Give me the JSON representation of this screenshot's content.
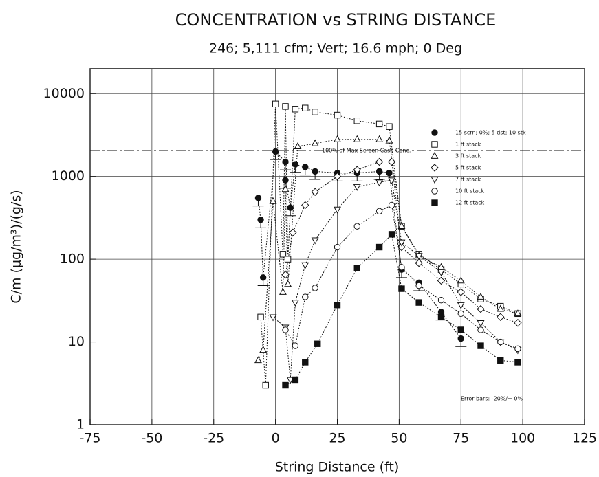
{
  "chart_data": {
    "type": "scatter",
    "title": "CONCENTRATION vs STRING DISTANCE",
    "subtitle": "246; 5,111 cfm; Vert; 16.6 mph; 0 Deg",
    "x_label": "String Distance (ft)",
    "y_label": "C/m (μg/m³)/(g/s)",
    "xlim": [
      -75,
      125
    ],
    "xticks": [
      -75,
      -50,
      -25,
      0,
      25,
      50,
      75,
      100,
      125
    ],
    "ylim": [
      1,
      20000
    ],
    "yticks": [
      1,
      10,
      100,
      1000,
      10000
    ],
    "y_scale": "log",
    "grid": true,
    "legend_position": "upper right",
    "reference_line": {
      "y": 2050,
      "label": "100% of Max Screen Case Conc."
    },
    "error_bars": {
      "series": 0,
      "lower_pct": 20,
      "upper_pct": 0,
      "label": "Error bars: -20%/+ 0%"
    },
    "series": [
      {
        "name": "15 scrn; 0%; 5 dst; 10 stk",
        "marker": "filled-circle",
        "color": "#111111",
        "x": [
          -7,
          -6,
          -5,
          0,
          4,
          4,
          6,
          8,
          12,
          16,
          25,
          33,
          42,
          46,
          51,
          58,
          67,
          75
        ],
        "values": [
          550,
          300,
          60,
          2000,
          1500,
          900,
          420,
          1400,
          1300,
          1150,
          1100,
          1100,
          1150,
          1100,
          75,
          52,
          23,
          11
        ]
      },
      {
        "name": "1 ft stack",
        "marker": "square",
        "color": "#111111",
        "x": [
          -6,
          -4,
          0,
          3,
          4,
          5,
          8,
          12,
          16,
          25,
          33,
          42,
          46,
          51,
          58,
          67,
          75,
          83,
          91,
          98
        ],
        "values": [
          20,
          3,
          7500,
          115,
          7000,
          100,
          6500,
          6700,
          6000,
          5500,
          4700,
          4300,
          4000,
          250,
          115,
          75,
          50,
          33,
          27,
          22
        ]
      },
      {
        "name": "3 ft stack",
        "marker": "triangle",
        "color": "#111111",
        "x": [
          -7,
          -5,
          -1,
          3,
          4,
          5,
          9,
          16,
          25,
          33,
          42,
          46,
          51,
          58,
          67,
          75,
          83,
          91,
          98
        ],
        "values": [
          6,
          8,
          500,
          40,
          700,
          50,
          2300,
          2500,
          2800,
          2800,
          2800,
          2700,
          250,
          110,
          80,
          55,
          35,
          25,
          22
        ]
      },
      {
        "name": "5 ft stack",
        "marker": "diamond",
        "color": "#111111",
        "x": [
          4,
          7,
          12,
          16,
          25,
          33,
          42,
          47,
          51,
          58,
          67,
          75,
          83,
          91,
          98
        ],
        "values": [
          65,
          210,
          450,
          650,
          1000,
          1200,
          1500,
          1500,
          140,
          90,
          55,
          40,
          25,
          20,
          17
        ]
      },
      {
        "name": "7 ft stack",
        "marker": "triangle-down",
        "color": "#111111",
        "x": [
          -1,
          4,
          6,
          8,
          12,
          16,
          25,
          33,
          42,
          47,
          51,
          58,
          67,
          75,
          83,
          91,
          98
        ],
        "values": [
          20,
          15,
          3.5,
          30,
          85,
          170,
          400,
          750,
          850,
          900,
          160,
          110,
          70,
          28,
          17,
          10,
          8
        ]
      },
      {
        "name": "10 ft stack",
        "marker": "circle",
        "color": "#111111",
        "x": [
          4,
          8,
          12,
          16,
          25,
          33,
          42,
          47,
          51,
          58,
          67,
          75,
          83,
          91,
          98
        ],
        "values": [
          14,
          9,
          35,
          45,
          140,
          250,
          380,
          450,
          80,
          48,
          32,
          22,
          14,
          10,
          8.3
        ]
      },
      {
        "name": "12 ft stack",
        "marker": "filled-square",
        "color": "#111111",
        "x": [
          4,
          8,
          12,
          17,
          25,
          33,
          42,
          47,
          51,
          58,
          67,
          75,
          83,
          91,
          98
        ],
        "values": [
          3,
          3.5,
          5.7,
          9.5,
          28,
          78,
          140,
          200,
          44,
          30,
          20,
          14,
          9,
          6,
          5.7
        ]
      }
    ]
  }
}
